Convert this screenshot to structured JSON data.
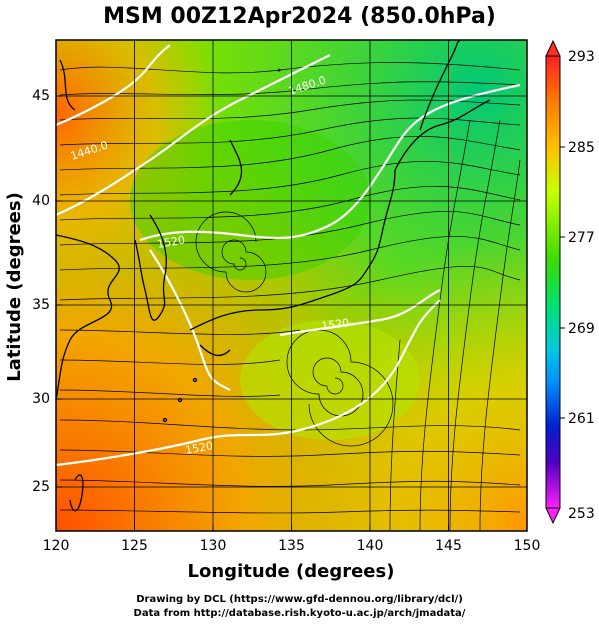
{
  "title": "MSM 00Z12Apr2024 (850.0hPa)",
  "x_axis": {
    "label": "Longitude (degrees)",
    "ticks": [
      "120",
      "125",
      "130",
      "135",
      "140",
      "145",
      "150"
    ],
    "range": [
      120,
      150
    ]
  },
  "y_axis": {
    "label": "Latitude  (degrees)",
    "ticks": [
      "25",
      "30",
      "35",
      "40",
      "45"
    ],
    "range": [
      22.5,
      47.6
    ]
  },
  "colorbar": {
    "labels": [
      "293",
      "285",
      "277",
      "269",
      "261",
      "253"
    ],
    "range": [
      253,
      293
    ]
  },
  "contours": {
    "label_1": "1440.0",
    "label_2": "1480.0",
    "label_3": "1520",
    "label_4": "1520",
    "label_5": "1520"
  },
  "credits": {
    "line1": "Drawing by DCL (https://www.gfd-dennou.org/library/dcl/)",
    "line2": "Data from http://database.rish.kyoto-u.ac.jp/arch/jmadata/"
  },
  "colors": {
    "warm": "#ff5a00",
    "mid": "#50dc00",
    "cool": "#00c090",
    "contour": "#ffffff",
    "coast": "#000000"
  }
}
